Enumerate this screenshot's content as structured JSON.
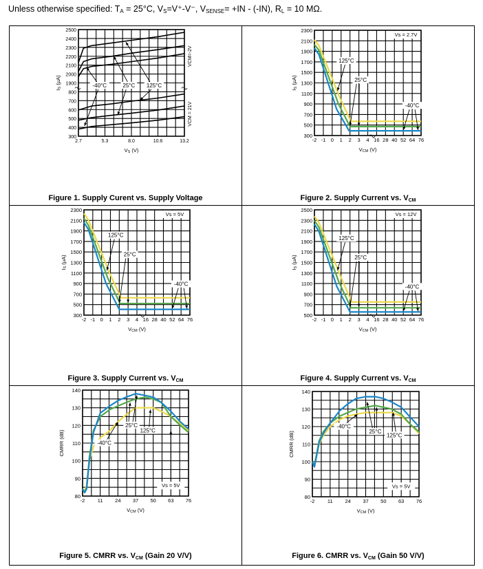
{
  "header": {
    "prefix": "Unless otherwise specified: T",
    "ta_sub": "A",
    "ta_rest": " = 25°C, V",
    "vs_sub": "S",
    "vs_rest": "=V⁺-V⁻, V",
    "sense_sub": "SENSE",
    "sense_rest": "= +IN - (-IN), R",
    "rl_sub": "L",
    "rl_rest": " = 10 MΩ."
  },
  "captions": {
    "f1": "Figure 1. Supply Curent vs. Supply Voltage",
    "f2_main": "Figure 2. Supply Current vs. V",
    "f2_sub": "CM",
    "f3_main": "Figure 3. Supply Current vs. V",
    "f3_sub": "CM",
    "f4_main": "Figure 4. Supply Current vs. V",
    "f4_sub": "CM",
    "f5": "Figure 5.  CMRR vs. V",
    "f5_sub": "CM",
    "f5_tail": " (Gain 20 V/V)",
    "f6": "Figure 6. CMRR vs. V",
    "f6_sub": "CM",
    "f6_tail": " (Gain 50 V/V)"
  },
  "colors": {
    "blue": "#1a86c8",
    "green": "#55a84a",
    "yellow": "#ecd94a",
    "black": "#000000"
  },
  "chart_data": [
    {
      "id": "fig1",
      "type": "line",
      "title": "Figure 1. Supply Curent vs. Supply Voltage",
      "xlabel": "Vs (V)",
      "ylabel": "Is (µA)",
      "xticks": [
        "2.7",
        "5.3",
        "8.0",
        "10.6",
        "13.2"
      ],
      "xlim": [
        2.7,
        13.2
      ],
      "yticks_upper": [
        "2500",
        "2400",
        "2300",
        "2200",
        "2100",
        "2000",
        "1900"
      ],
      "yticks_lower": [
        "800",
        "700",
        "600",
        "500",
        "400",
        "300"
      ],
      "band_labels": [
        "VCM=-2V",
        "VCM = 21V"
      ],
      "legend": [
        "-40°C",
        "25°C",
        "125°C"
      ],
      "series": [
        {
          "name": "125°C (VCM=-2V)",
          "x": [
            2.7,
            3.2,
            4.0,
            6.0,
            8.0,
            10.6,
            13.2
          ],
          "y": [
            2130,
            2290,
            2320,
            2350,
            2380,
            2420,
            2470
          ]
        },
        {
          "name": "25°C (VCM=-2V)",
          "x": [
            2.7,
            3.2,
            4.0,
            6.0,
            8.0,
            10.6,
            13.2
          ],
          "y": [
            2030,
            2140,
            2170,
            2200,
            2235,
            2275,
            2320
          ]
        },
        {
          "name": "-40°C (VCM=-2V)",
          "x": [
            2.7,
            3.2,
            4.0,
            6.0,
            8.0,
            10.6,
            13.2
          ],
          "y": [
            1970,
            2060,
            2085,
            2110,
            2140,
            2180,
            2230
          ]
        },
        {
          "name": "125°C (VCM=21V)",
          "x": [
            2.7,
            4.0,
            6.0,
            8.0,
            10.6,
            13.2
          ],
          "y": [
            595,
            640,
            665,
            695,
            730,
            775
          ]
        },
        {
          "name": "25°C (VCM=21V)",
          "x": [
            2.7,
            4.0,
            6.0,
            8.0,
            10.6,
            13.2
          ],
          "y": [
            480,
            510,
            535,
            560,
            595,
            640
          ]
        },
        {
          "name": "-40°C (VCM=21V)",
          "x": [
            2.7,
            4.0,
            6.0,
            8.0,
            10.6,
            13.2
          ],
          "y": [
            380,
            410,
            430,
            450,
            480,
            520
          ]
        }
      ]
    },
    {
      "id": "fig2",
      "type": "line",
      "title": "Figure 2. Supply Current vs. VCM",
      "xlabel": "VCM (V)",
      "ylabel": "Is (µA)",
      "xticks": [
        "-2",
        "-1",
        "0",
        "1",
        "2",
        "3",
        "4",
        "16",
        "28",
        "40",
        "52",
        "64",
        "76"
      ],
      "yticks": [
        "2300",
        "2100",
        "1900",
        "1700",
        "1500",
        "1300",
        "1100",
        "900",
        "700",
        "500",
        "300"
      ],
      "ylim": [
        300,
        2300
      ],
      "annotation": "Vs = 2.7V",
      "legend": [
        "125°C",
        "25°C",
        "-40°C"
      ],
      "series": [
        {
          "name": "125°C",
          "color": "yellow",
          "x": [
            -2,
            -1.5,
            0.9,
            2.1,
            76
          ],
          "y": [
            2120,
            2010,
            1000,
            570,
            570
          ]
        },
        {
          "name": "25°C",
          "color": "green",
          "x": [
            -2,
            -1.5,
            0.7,
            2.0,
            76
          ],
          "y": [
            2030,
            1920,
            900,
            470,
            470
          ]
        },
        {
          "name": "-40°C",
          "color": "blue",
          "x": [
            -2,
            -1.5,
            0.5,
            1.9,
            76
          ],
          "y": [
            1960,
            1840,
            800,
            390,
            390
          ]
        }
      ]
    },
    {
      "id": "fig3",
      "type": "line",
      "title": "Figure 3. Supply Current vs. VCM",
      "xlabel": "VCM (V)",
      "ylabel": "Is (µA)",
      "xticks": [
        "-2",
        "-1",
        "0",
        "1",
        "2",
        "3",
        "4",
        "16",
        "28",
        "40",
        "52",
        "64",
        "76"
      ],
      "yticks": [
        "2300",
        "2100",
        "1900",
        "1700",
        "1500",
        "1300",
        "1100",
        "900",
        "700",
        "500",
        "300"
      ],
      "ylim": [
        300,
        2300
      ],
      "annotation": "Vs = 5V",
      "legend": [
        "125°C",
        "25°C",
        "-40°C"
      ],
      "series": [
        {
          "name": "125°C",
          "color": "yellow",
          "x": [
            -2,
            -1.5,
            0.9,
            2.2,
            76
          ],
          "y": [
            2230,
            2110,
            1100,
            630,
            630
          ]
        },
        {
          "name": "25°C",
          "color": "green",
          "x": [
            -2,
            -1.5,
            0.7,
            2.1,
            76
          ],
          "y": [
            2140,
            2010,
            1000,
            520,
            520
          ]
        },
        {
          "name": "-40°C",
          "color": "blue",
          "x": [
            -2,
            -1.5,
            0.5,
            2.0,
            76
          ],
          "y": [
            2060,
            1930,
            900,
            410,
            410
          ]
        }
      ]
    },
    {
      "id": "fig4",
      "type": "line",
      "title": "Figure 4. Supply Current vs. VCM",
      "xlabel": "VCM (V)",
      "ylabel": "Is (µA)",
      "xticks": [
        "-2",
        "-1",
        "0",
        "1",
        "2",
        "3",
        "4",
        "16",
        "28",
        "40",
        "52",
        "64",
        "76"
      ],
      "yticks": [
        "2500",
        "2300",
        "2100",
        "1900",
        "1700",
        "1500",
        "1300",
        "1100",
        "900",
        "700",
        "500"
      ],
      "ylim": [
        500,
        2500
      ],
      "annotation": "Vs = 12V",
      "legend": [
        "125°C",
        "25°C",
        "-40°C"
      ],
      "series": [
        {
          "name": "125°C",
          "color": "yellow",
          "x": [
            -2,
            -1.5,
            0.9,
            2.2,
            76
          ],
          "y": [
            2380,
            2260,
            1250,
            750,
            750
          ]
        },
        {
          "name": "25°C",
          "color": "green",
          "x": [
            -2,
            -1.5,
            0.7,
            2.1,
            76
          ],
          "y": [
            2300,
            2170,
            1150,
            640,
            640
          ]
        },
        {
          "name": "-40°C",
          "color": "blue",
          "x": [
            -2,
            -1.5,
            0.5,
            2.0,
            76
          ],
          "y": [
            2230,
            2090,
            1050,
            560,
            560
          ]
        }
      ]
    },
    {
      "id": "fig5",
      "type": "line",
      "title": "Figure 5. CMRR vs. VCM (Gain 20 V/V)",
      "xlabel": "VCM (V)",
      "ylabel": "CMRR (dB)",
      "xticks": [
        "-2",
        "11",
        "24",
        "37",
        "50",
        "63",
        "76"
      ],
      "yticks": [
        "140",
        "130",
        "120",
        "110",
        "100",
        "90",
        "80"
      ],
      "xlim": [
        -2,
        76
      ],
      "ylim": [
        80,
        140
      ],
      "annotation": "Vs = 5V",
      "legend": [
        "-40°C",
        "25°C",
        "125°C"
      ],
      "series": [
        {
          "name": "25°C",
          "color": "blue",
          "x": [
            -2,
            -0.5,
            1,
            3,
            6,
            11,
            18,
            24,
            30,
            37,
            44,
            50,
            56,
            63,
            70,
            76
          ],
          "y": [
            84,
            82,
            84,
            100,
            116,
            127,
            131,
            134,
            136,
            138,
            137,
            136,
            133,
            128,
            122,
            118
          ]
        },
        {
          "name": "125°C",
          "color": "green",
          "x": [
            -2,
            -0.5,
            1,
            3,
            6,
            11,
            18,
            24,
            30,
            37,
            44,
            50,
            56,
            63,
            70,
            76
          ],
          "y": [
            84,
            82,
            85,
            102,
            117,
            125,
            129,
            131,
            133,
            135,
            136,
            135,
            133,
            125,
            120,
            116
          ]
        },
        {
          "name": "-40°C",
          "color": "yellow",
          "x": [
            -2,
            -0.5,
            1,
            3,
            6,
            11,
            18,
            24,
            30,
            37,
            44,
            50,
            56,
            63,
            70,
            76
          ],
          "y": [
            84,
            83,
            86,
            100,
            108,
            113,
            117,
            122,
            126,
            130,
            130,
            130,
            128,
            125,
            121,
            117
          ]
        }
      ]
    },
    {
      "id": "fig6",
      "type": "line",
      "title": "Figure 6. CMRR vs. VCM (Gain 50 V/V)",
      "xlabel": "VCM (V)",
      "ylabel": "CMRR (dB)",
      "xticks": [
        "-2",
        "11",
        "24",
        "37",
        "50",
        "63",
        "76"
      ],
      "yticks": [
        "140",
        "130",
        "120",
        "110",
        "100",
        "90",
        "80"
      ],
      "xlim": [
        -2,
        76
      ],
      "ylim": [
        80,
        140
      ],
      "annotation": "Vs = 5V",
      "legend": [
        "-40°C",
        "25°C",
        "125°C"
      ],
      "series": [
        {
          "name": "25°C",
          "color": "blue",
          "x": [
            -2,
            -0.5,
            1,
            3,
            6,
            11,
            18,
            24,
            30,
            37,
            44,
            50,
            56,
            63,
            70,
            76
          ],
          "y": [
            100,
            97,
            103,
            111,
            116,
            122,
            129,
            133,
            136,
            137,
            137,
            136,
            134,
            131,
            125,
            120
          ]
        },
        {
          "name": "125°C",
          "color": "green",
          "x": [
            -2,
            -0.5,
            1,
            3,
            6,
            11,
            18,
            24,
            30,
            37,
            44,
            50,
            56,
            63,
            70,
            76
          ],
          "y": [
            100,
            98,
            104,
            112,
            117,
            122,
            126,
            128,
            130,
            131,
            132,
            131,
            130,
            127,
            121,
            117
          ]
        },
        {
          "name": "-40°C",
          "color": "yellow",
          "x": [
            -2,
            -0.5,
            1,
            3,
            6,
            11,
            18,
            24,
            30,
            37,
            44,
            50,
            56,
            63,
            70,
            76
          ],
          "y": [
            100,
            98,
            103,
            110,
            115,
            120,
            124,
            126,
            127,
            128,
            128,
            128,
            128,
            126,
            121,
            116
          ]
        }
      ]
    }
  ]
}
